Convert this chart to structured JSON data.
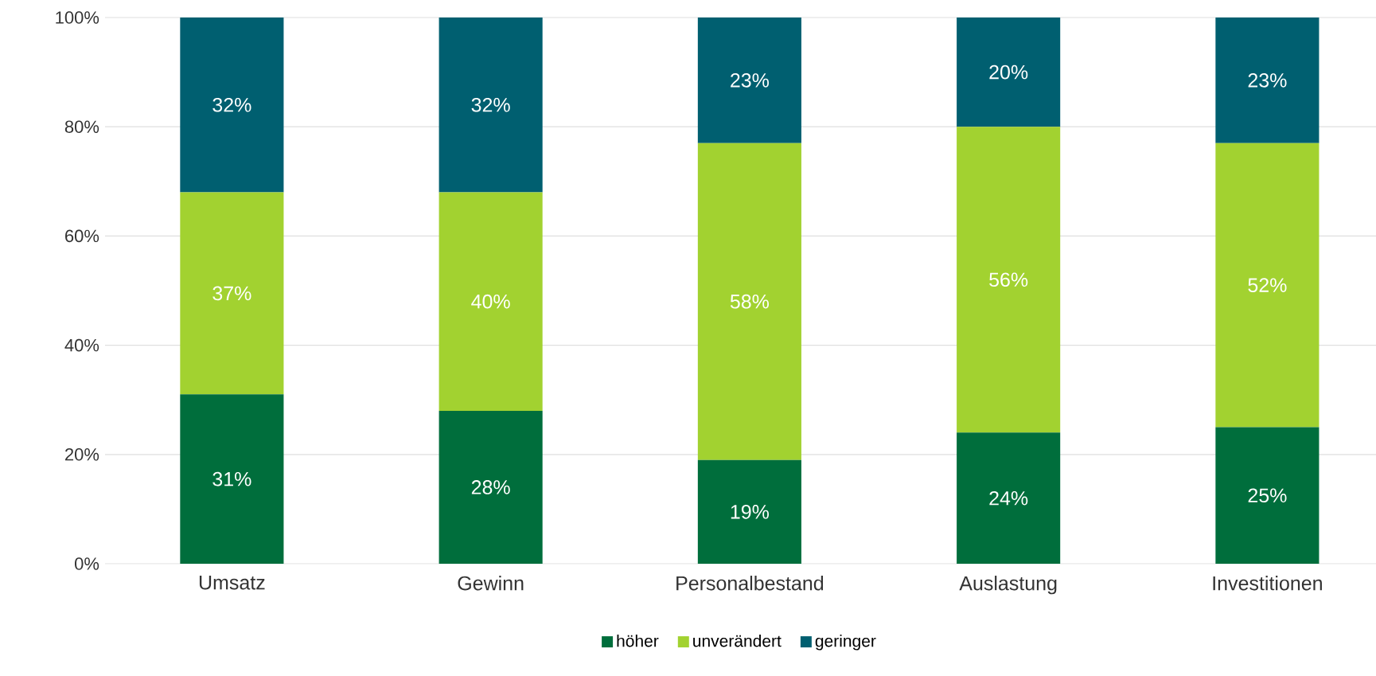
{
  "chart_data": {
    "type": "bar",
    "stacked": true,
    "categories": [
      "Umsatz",
      "Gewinn",
      "Personalbestand",
      "Auslastung",
      "Investitionen"
    ],
    "series": [
      {
        "name": "höher",
        "color": "#006e3c",
        "values": [
          31,
          28,
          19,
          24,
          25
        ],
        "value_labels": [
          "31%",
          "28%",
          "19%",
          "24%",
          "25%"
        ]
      },
      {
        "name": "unverändert",
        "color": "#a2d230",
        "values": [
          37,
          40,
          58,
          56,
          52
        ],
        "value_labels": [
          "37%",
          "40%",
          "58%",
          "56%",
          "52%"
        ]
      },
      {
        "name": "geringer",
        "color": "#005f70",
        "values": [
          32,
          32,
          23,
          20,
          23
        ],
        "value_labels": [
          "32%",
          "32%",
          "23%",
          "20%",
          "23%"
        ]
      }
    ],
    "ylim": [
      0,
      100
    ],
    "yticks": [
      {
        "value": 0,
        "label": "0%"
      },
      {
        "value": 20,
        "label": "20%"
      },
      {
        "value": 40,
        "label": "40%"
      },
      {
        "value": 60,
        "label": "60%"
      },
      {
        "value": 80,
        "label": "80%"
      },
      {
        "value": 100,
        "label": "100%"
      }
    ],
    "grid": "y",
    "legend": "bottom"
  }
}
